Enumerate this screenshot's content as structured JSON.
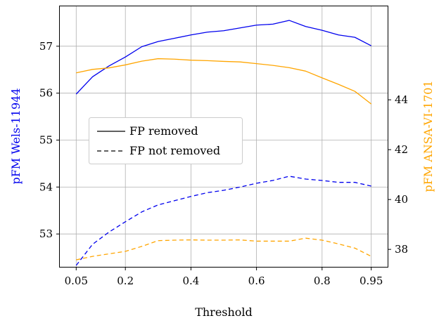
{
  "chart_data": {
    "type": "line",
    "xlabel": "Threshold",
    "ylabel_left": "pFM Wels-11944",
    "ylabel_right": "pFM ANSA-VI-1701",
    "xlim": [
      0.0,
      1.0
    ],
    "ylim_left": [
      52.3,
      57.85
    ],
    "ylim_right": [
      37.3,
      47.75
    ],
    "grid": true,
    "legend_placement": "center-left",
    "x_ticks": [
      0.05,
      0.2,
      0.4,
      0.6,
      0.8,
      0.95
    ],
    "x_tick_labels": [
      "0.05",
      "0.2",
      "0.4",
      "0.6",
      "0.8",
      "0.95"
    ],
    "y_ticks_left": [
      53,
      54,
      55,
      56,
      57
    ],
    "y_tick_labels_left": [
      "53",
      "54",
      "55",
      "56",
      "57"
    ],
    "y_ticks_right": [
      38,
      40,
      42,
      44
    ],
    "y_tick_labels_right": [
      "38",
      "40",
      "42",
      "44"
    ],
    "colors": {
      "left_axis": "#0000ee",
      "right_axis": "#ffa500"
    },
    "legend": [
      {
        "label": "FP removed",
        "dash": "solid"
      },
      {
        "label": "FP not removed",
        "dash": "dashed"
      }
    ],
    "series": [
      {
        "axis": "left",
        "color": "#0000ee",
        "dash": "solid",
        "x": [
          0.05,
          0.1,
          0.15,
          0.2,
          0.25,
          0.3,
          0.35,
          0.4,
          0.45,
          0.5,
          0.55,
          0.6,
          0.65,
          0.7,
          0.75,
          0.8,
          0.85,
          0.9,
          0.95
        ],
        "y": [
          55.98,
          56.35,
          56.58,
          56.77,
          56.99,
          57.1,
          57.17,
          57.24,
          57.3,
          57.33,
          57.39,
          57.45,
          57.47,
          57.55,
          57.42,
          57.34,
          57.24,
          57.19,
          57.01
        ]
      },
      {
        "axis": "left",
        "color": "#0000ee",
        "dash": "dashed",
        "x": [
          0.05,
          0.1,
          0.15,
          0.2,
          0.25,
          0.3,
          0.35,
          0.4,
          0.45,
          0.5,
          0.55,
          0.6,
          0.65,
          0.7,
          0.75,
          0.8,
          0.85,
          0.9,
          0.95
        ],
        "y": [
          52.33,
          52.78,
          53.04,
          53.26,
          53.47,
          53.62,
          53.71,
          53.8,
          53.88,
          53.93,
          54.0,
          54.08,
          54.14,
          54.23,
          54.17,
          54.14,
          54.1,
          54.1,
          54.02
        ]
      },
      {
        "axis": "right",
        "color": "#ffa500",
        "dash": "solid",
        "x": [
          0.05,
          0.1,
          0.15,
          0.2,
          0.25,
          0.3,
          0.35,
          0.4,
          0.45,
          0.5,
          0.55,
          0.6,
          0.65,
          0.7,
          0.75,
          0.8,
          0.85,
          0.9,
          0.95
        ],
        "y": [
          45.08,
          45.22,
          45.28,
          45.4,
          45.55,
          45.65,
          45.63,
          45.59,
          45.57,
          45.54,
          45.52,
          45.45,
          45.38,
          45.29,
          45.15,
          44.88,
          44.62,
          44.34,
          43.83
        ]
      },
      {
        "axis": "right",
        "color": "#ffa500",
        "dash": "dashed",
        "x": [
          0.05,
          0.1,
          0.15,
          0.2,
          0.25,
          0.3,
          0.35,
          0.4,
          0.45,
          0.5,
          0.55,
          0.6,
          0.65,
          0.7,
          0.75,
          0.8,
          0.85,
          0.9,
          0.95
        ],
        "y": [
          37.58,
          37.72,
          37.82,
          37.92,
          38.12,
          38.35,
          38.37,
          38.38,
          38.37,
          38.37,
          38.38,
          38.33,
          38.33,
          38.33,
          38.45,
          38.37,
          38.22,
          38.05,
          37.72
        ]
      }
    ]
  }
}
